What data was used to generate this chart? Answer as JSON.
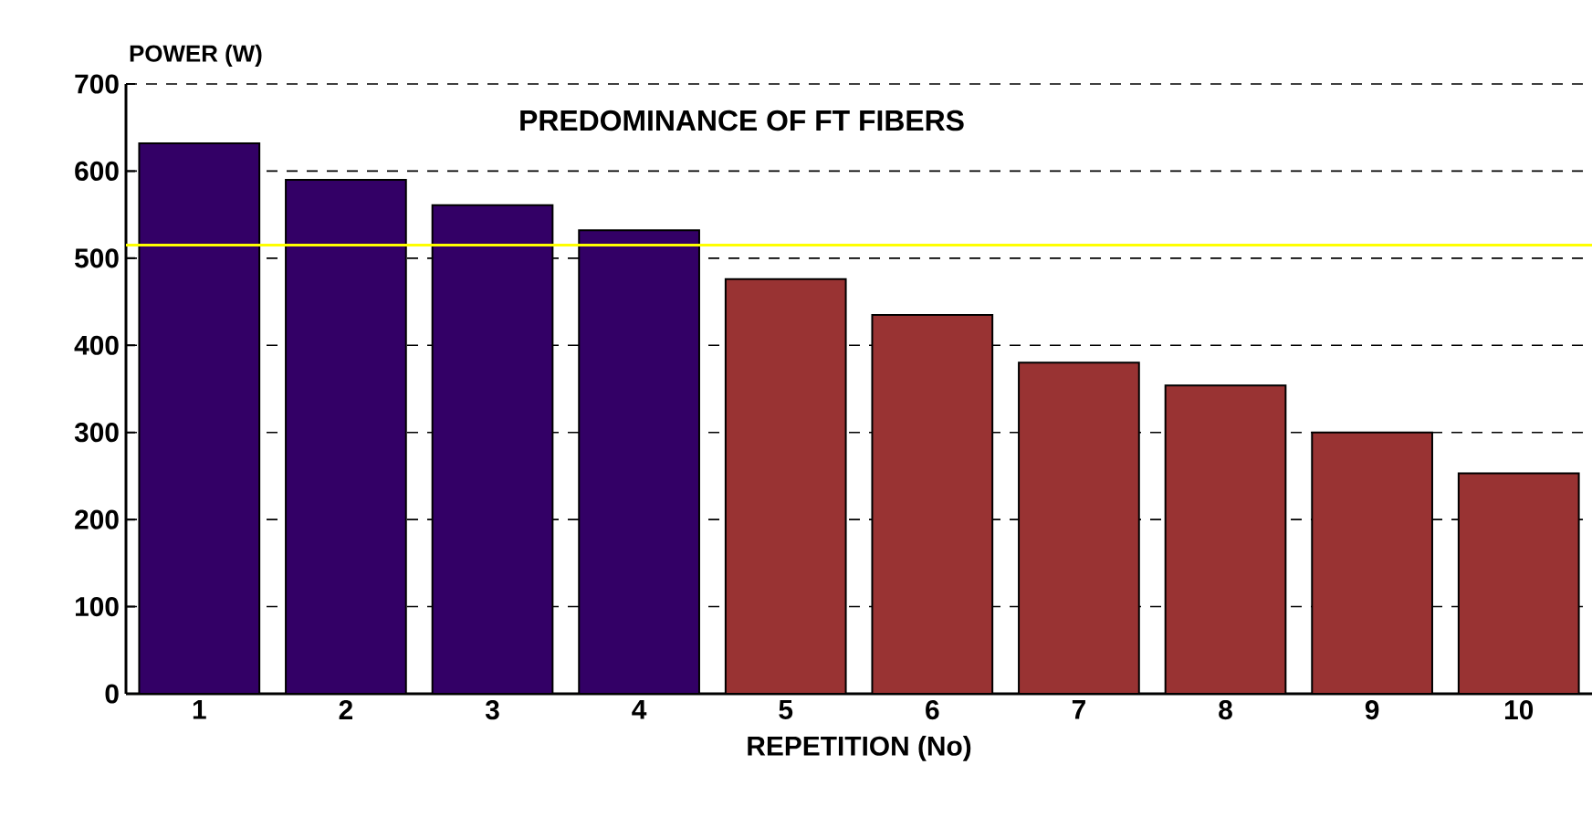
{
  "chart_data": {
    "type": "bar",
    "title": "PREDOMINANCE OF FT FIBERS",
    "xlabel": "REPETITION (No)",
    "ylabel": "POWER (W)",
    "categories": [
      "1",
      "2",
      "3",
      "4",
      "5",
      "6",
      "7",
      "8",
      "9",
      "10"
    ],
    "values": [
      632,
      590,
      561,
      532,
      476,
      435,
      380,
      354,
      300,
      253
    ],
    "colors": [
      "#330066",
      "#330066",
      "#330066",
      "#330066",
      "#993333",
      "#993333",
      "#993333",
      "#993333",
      "#993333",
      "#993333"
    ],
    "ylim": [
      0,
      700
    ],
    "yticks": [
      0,
      100,
      200,
      300,
      400,
      500,
      600,
      700
    ],
    "grid": "y",
    "ref_lines": [
      {
        "axis": "y",
        "value": 515,
        "color": "#ffff00"
      }
    ]
  }
}
